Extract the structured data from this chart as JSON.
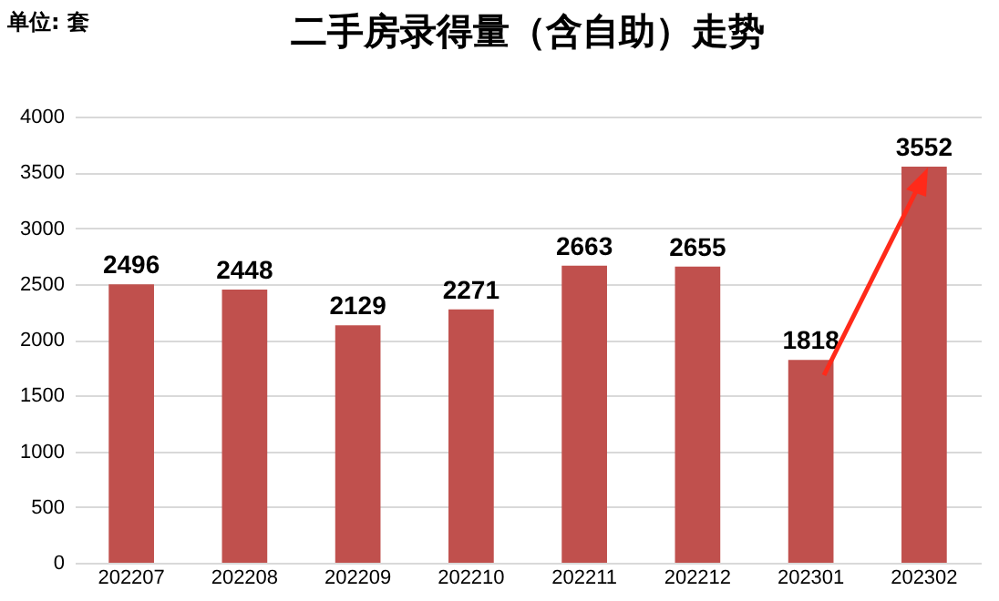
{
  "chart_data": {
    "type": "bar",
    "title": "二手房录得量（含自助）走势",
    "categories": [
      "202207",
      "202208",
      "202209",
      "202210",
      "202211",
      "202212",
      "202301",
      "202302"
    ],
    "values": [
      2496,
      2448,
      2129,
      2271,
      2663,
      2655,
      1818,
      3552
    ],
    "color": "#c0504d",
    "ylim": [
      0,
      4000
    ],
    "yticks": [
      0,
      500,
      1000,
      1500,
      2000,
      2500,
      3000,
      3500,
      4000
    ],
    "grid": "y",
    "data_labels": true,
    "legend": false,
    "annotations": [
      "单位: 套"
    ]
  }
}
